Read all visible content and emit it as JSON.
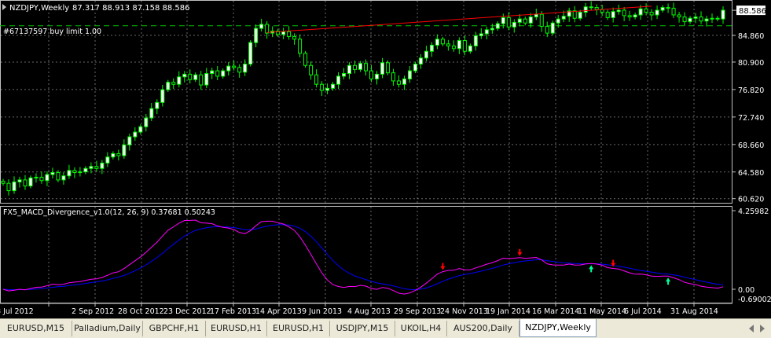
{
  "main_window": {
    "title": "NZDJPY,Weekly",
    "ohlc": "87.317 88.913 87.158 88.586",
    "order_label": "#67137597 buy limit 1.00",
    "current_price": "88.586"
  },
  "indicator_window": {
    "title": "FX5_MACD_Divergence_v1.0(12, 26, 9) 0.37681 0.50243",
    "scale_labels": [
      "4.25982",
      "0.00",
      "-0.69002"
    ]
  },
  "price_scale": [
    "84.860",
    "80.900",
    "76.820",
    "72.740",
    "68.660",
    "64.580",
    "60.620"
  ],
  "time_labels": [
    "8 Jul 2012",
    "2 Sep 2012",
    "28 Oct 2012",
    "23 Dec 2012",
    "17 Feb 2013",
    "14 Apr 2013",
    "9 Jun 2013",
    "4 Aug 2013",
    "29 Sep 2013",
    "24 Nov 2013",
    "19 Jan 2014",
    "16 Mar 2014",
    "11 May 2014",
    "6 Jul 2014",
    "31 Aug 2014"
  ],
  "tabs": [
    {
      "label": "EURUSD,M15",
      "active": false
    },
    {
      "label": "Palladium,Daily",
      "active": false
    },
    {
      "label": "GBPCHF,H1",
      "active": false
    },
    {
      "label": "EURUSD,H1",
      "active": false
    },
    {
      "label": "EURUSD,H1",
      "active": false
    },
    {
      "label": "USDJPY,M15",
      "active": false
    },
    {
      "label": "UKOIL,H4",
      "active": false
    },
    {
      "label": "AUS200,Daily",
      "active": false
    },
    {
      "label": "NZDJPY,Weekly",
      "active": true
    }
  ],
  "colors": {
    "background": "#000000",
    "grid": "#c0c0c0",
    "bull_candle": "#ffffff",
    "bear_candle": "#000000",
    "candle_outline": "#00ff00",
    "order_line": "#00c000",
    "trendline": "#ff0000",
    "macd_line": "#ff00ff",
    "signal_line": "#0000ff",
    "arrow_top": "#ff0000",
    "arrow_bottom": "#00ff99"
  },
  "chart_data": {
    "type": "candlestick",
    "symbol": "NZDJPY",
    "timeframe": "Weekly",
    "price_axis": {
      "max": 90.0,
      "min": 60.0
    },
    "closes": [
      62.9,
      61.8,
      63.1,
      63.4,
      62.5,
      63.7,
      63.8,
      63.3,
      64.2,
      64.5,
      63.4,
      64.0,
      64.8,
      64.5,
      64.6,
      65.1,
      65.4,
      65.1,
      65.9,
      66.8,
      67.3,
      67.0,
      68.6,
      69.8,
      70.5,
      71.3,
      72.6,
      74.0,
      74.9,
      76.8,
      77.9,
      77.6,
      78.7,
      79.1,
      78.3,
      79.0,
      77.5,
      79.2,
      79.6,
      78.8,
      79.6,
      80.3,
      80.1,
      79.4,
      80.6,
      83.8,
      85.9,
      86.5,
      85.2,
      85.5,
      85.0,
      85.4,
      84.7,
      84.3,
      82.2,
      80.4,
      79.0,
      77.6,
      76.7,
      77.0,
      77.6,
      78.8,
      79.2,
      80.4,
      79.8,
      80.7,
      79.6,
      78.4,
      79.1,
      80.8,
      79.3,
      78.1,
      77.6,
      78.4,
      79.6,
      80.6,
      81.5,
      82.5,
      83.4,
      84.3,
      83.6,
      83.3,
      82.9,
      84.1,
      82.5,
      83.3,
      84.8,
      85.1,
      85.7,
      85.9,
      86.6,
      87.5,
      86.1,
      86.8,
      87.3,
      86.7,
      87.6,
      88.0,
      86.2,
      85.2,
      86.7,
      87.3,
      87.7,
      88.5,
      87.4,
      88.3,
      89.1,
      89.0,
      88.7,
      88.3,
      87.5,
      88.4,
      88.6,
      87.8,
      87.6,
      87.9,
      88.8,
      88.3,
      87.9,
      88.6,
      89.0,
      88.9,
      87.9,
      87.6,
      86.9,
      87.4,
      87.6,
      87.0,
      87.3,
      87.4,
      87.3,
      88.6
    ],
    "order_price": 86.3,
    "trendline": {
      "start_price": 85.3,
      "end_price": 89.2
    },
    "macd": {
      "axis": {
        "max": 4.25982,
        "min": -0.69002
      },
      "title": "FX5_MACD_Divergence_v1.0(12, 26, 9)",
      "values": {
        "macd": 0.37681,
        "signal": 0.50243
      },
      "arrows": [
        {
          "bar": 80,
          "type": "bearish-divergence"
        },
        {
          "bar": 94,
          "type": "bearish-divergence"
        },
        {
          "bar": 107,
          "type": "bullish-divergence"
        },
        {
          "bar": 111,
          "type": "bearish-divergence"
        },
        {
          "bar": 121,
          "type": "bullish-divergence"
        }
      ]
    }
  }
}
